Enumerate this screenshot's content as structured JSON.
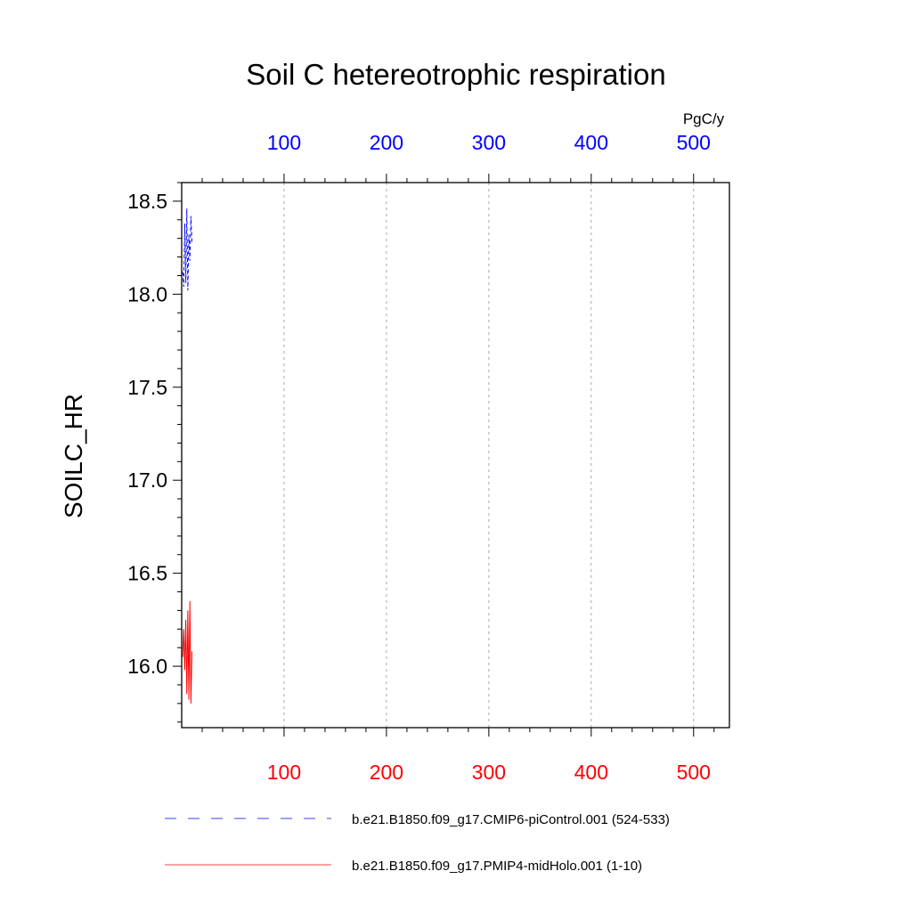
{
  "chart_data": {
    "type": "line",
    "title": "Soil C hetereotrophic respiration",
    "ylabel": "SOILC_HR",
    "units": "PgC/y",
    "xlim": [
      0,
      535
    ],
    "ylim": [
      15.67,
      18.6
    ],
    "yticks": [
      16.0,
      16.5,
      17.0,
      17.5,
      18.0,
      18.5
    ],
    "ytick_labels": [
      "16.0",
      "16.5",
      "17.0",
      "17.5",
      "18.0",
      "18.5"
    ],
    "xticks": [
      100,
      200,
      300,
      400,
      500
    ],
    "xtick_labels": [
      "100",
      "200",
      "300",
      "400",
      "500"
    ],
    "grid": "vertical dashed at x ticks",
    "series": [
      {
        "name": "b.e21.B1850.f09_g17.CMIP6-piControl.001 (524-533)",
        "axis": "top",
        "color": "#0000ff",
        "style": "dashed",
        "x": [
          1,
          2,
          3,
          4,
          5,
          6,
          7,
          8,
          9,
          10
        ],
        "y": [
          18.12,
          18.04,
          18.38,
          18.06,
          18.46,
          18.02,
          18.32,
          18.18,
          18.42,
          18.28
        ]
      },
      {
        "name": "b.e21.B1850.f09_g17.PMIP4-midHolo.001 (1-10)",
        "axis": "bottom",
        "color": "#ff0000",
        "style": "solid",
        "x": [
          1,
          2,
          3,
          4,
          5,
          6,
          7,
          8,
          9,
          10
        ],
        "y": [
          16.05,
          16.2,
          15.98,
          16.25,
          15.85,
          16.3,
          15.82,
          16.35,
          15.8,
          16.08
        ]
      }
    ],
    "legend_position": "bottom"
  }
}
